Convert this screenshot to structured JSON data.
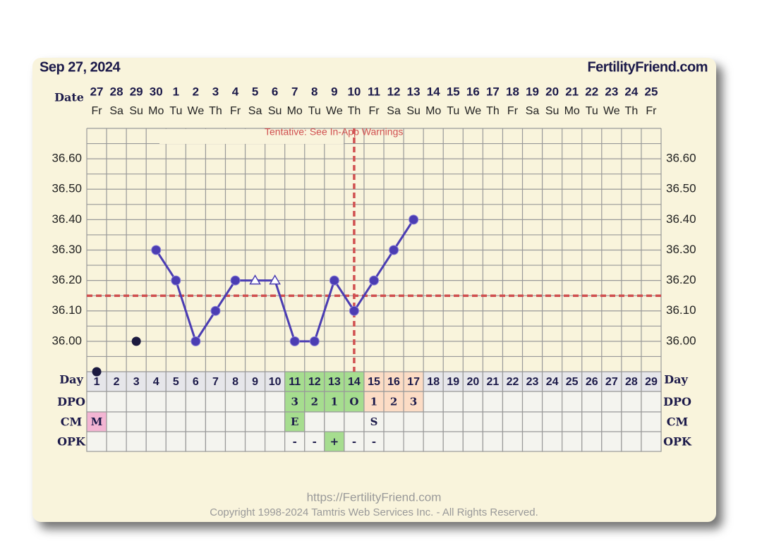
{
  "header": {
    "date": "Sep 27, 2024",
    "site": "FertilityFriend.com"
  },
  "chart_data": {
    "type": "line",
    "annotation": "Tentative: See In-App Warnings",
    "date_label": "Date",
    "dates": [
      "27",
      "28",
      "29",
      "30",
      "1",
      "2",
      "3",
      "4",
      "5",
      "6",
      "7",
      "8",
      "9",
      "10",
      "11",
      "12",
      "13",
      "14",
      "15",
      "16",
      "17",
      "18",
      "19",
      "20",
      "21",
      "22",
      "23",
      "24",
      "25"
    ],
    "weekdays": [
      "Fr",
      "Sa",
      "Su",
      "Mo",
      "Tu",
      "We",
      "Th",
      "Fr",
      "Sa",
      "Su",
      "Mo",
      "Tu",
      "We",
      "Th",
      "Fr",
      "Sa",
      "Su",
      "Mo",
      "Tu",
      "We",
      "Th",
      "Fr",
      "Sa",
      "Su",
      "Mo",
      "Tu",
      "We",
      "Th",
      "Fr"
    ],
    "day_label": "Day",
    "x": [
      1,
      2,
      3,
      4,
      5,
      6,
      7,
      8,
      9,
      10,
      11,
      12,
      13,
      14,
      15,
      16,
      17,
      18,
      19,
      20,
      21,
      22,
      23,
      24,
      25,
      26,
      27,
      28,
      29
    ],
    "xlim": [
      0.5,
      29.5
    ],
    "ylim": [
      35.9,
      36.7
    ],
    "yticks": [
      {
        "value": 36.0,
        "label": "36.00"
      },
      {
        "value": 36.1,
        "label": "36.10"
      },
      {
        "value": 36.2,
        "label": "36.20"
      },
      {
        "value": 36.3,
        "label": "36.30"
      },
      {
        "value": 36.4,
        "label": "36.40"
      },
      {
        "value": 36.5,
        "label": "36.50"
      },
      {
        "value": 36.6,
        "label": "36.60"
      }
    ],
    "grid": true,
    "coverline": {
      "value": 36.15,
      "color": "#d05050"
    },
    "ovulation": {
      "x": 14,
      "color": "#d05050"
    },
    "series": [
      {
        "color": "#1c1a40",
        "marker": "dot",
        "line": false,
        "values": [
          35.9,
          null,
          36.0,
          null,
          null,
          null,
          null,
          null,
          null,
          null,
          null,
          null,
          null,
          null,
          null,
          null,
          null,
          null,
          null,
          null,
          null,
          null,
          null,
          null,
          null,
          null,
          null,
          null,
          null
        ]
      },
      {
        "color": "#4b3db3",
        "marker": "circle",
        "line": true,
        "values": [
          null,
          null,
          null,
          36.3,
          36.2,
          36.0,
          36.1,
          36.2,
          36.2,
          36.2,
          36.0,
          36.0,
          36.2,
          36.1,
          36.2,
          36.3,
          36.4,
          null,
          null,
          null,
          null,
          null,
          null,
          null,
          null,
          null,
          null,
          null,
          null
        ],
        "markers": [
          null,
          null,
          null,
          "circle",
          "circle",
          "circle",
          "circle",
          "circle",
          "triangle",
          "triangle",
          "circle",
          "circle",
          "circle",
          "circle",
          "circle",
          "circle",
          "circle",
          null,
          null,
          null,
          null,
          null,
          null,
          null,
          null,
          null,
          null,
          null,
          null
        ]
      }
    ],
    "rows": [
      {
        "label": "DPO",
        "cells": [
          null,
          null,
          null,
          null,
          null,
          null,
          null,
          null,
          null,
          null,
          "3",
          "2",
          "1",
          "O",
          "1",
          "2",
          "3",
          null,
          null,
          null,
          null,
          null,
          null,
          null,
          null,
          null,
          null,
          null,
          null
        ]
      },
      {
        "label": "CM",
        "cells": [
          "M",
          null,
          null,
          null,
          null,
          null,
          null,
          null,
          null,
          null,
          "E",
          null,
          null,
          null,
          "S",
          null,
          null,
          null,
          null,
          null,
          null,
          null,
          null,
          null,
          null,
          null,
          null,
          null,
          null
        ]
      },
      {
        "label": "OPK",
        "cells": [
          null,
          null,
          null,
          null,
          null,
          null,
          null,
          null,
          null,
          null,
          "-",
          "-",
          "+",
          "-",
          "-",
          null,
          null,
          null,
          null,
          null,
          null,
          null,
          null,
          null,
          null,
          null,
          null,
          null,
          null
        ]
      }
    ],
    "highlights": [
      {
        "from": 11,
        "to": 14,
        "color": "#a6dd8f"
      },
      {
        "from": 15,
        "to": 17,
        "color": "#fcdcc5"
      }
    ],
    "cell_colors": {
      "M": "#f3b5d3",
      "E": "#a6dd8f",
      "+": "#a6dd8f"
    }
  },
  "footer": {
    "url": "https://FertilityFriend.com",
    "copyright": "Copyright 1998-2024 Tamtris Web Services Inc. - All Rights Reserved."
  }
}
